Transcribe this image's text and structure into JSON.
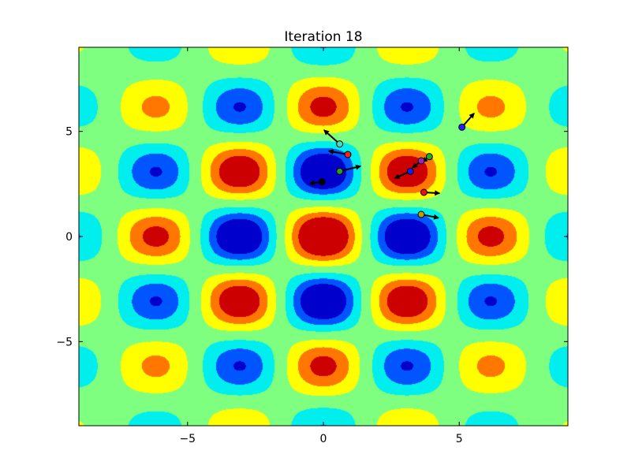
{
  "chart_data": {
    "type": "contour",
    "title": "Iteration 18",
    "xlabel": "",
    "ylabel": "",
    "xlim": [
      -9,
      9
    ],
    "ylim": [
      -9,
      9
    ],
    "grid": false,
    "x_ticks": [
      {
        "value": -5,
        "label": "−5"
      },
      {
        "value": 0,
        "label": "0"
      },
      {
        "value": 5,
        "label": "5"
      }
    ],
    "y_ticks": [
      {
        "value": -5,
        "label": "−5"
      },
      {
        "value": 0,
        "label": "0"
      },
      {
        "value": 5,
        "label": "5"
      }
    ],
    "contour": {
      "function": "cos(x)*cos(y)*exp(-(x^2+y^2)/100)",
      "colormap": "jet",
      "level_colors": [
        "#0000cd",
        "#0055ff",
        "#00eeee",
        "#7fff7f",
        "#ffff00",
        "#ff7700",
        "#cc0000"
      ],
      "level_thresholds": [
        -0.6,
        -0.4,
        -0.15,
        0.15,
        0.4,
        0.6
      ]
    },
    "particles": [
      {
        "x": 0.6,
        "y": 4.4,
        "color": "#40e0c0",
        "vx": -0.9,
        "vy": 0.8
      },
      {
        "x": 0.9,
        "y": 3.9,
        "color": "#ff2020",
        "vx": -1.1,
        "vy": 0.2
      },
      {
        "x": 0.6,
        "y": 3.1,
        "color": "#2a9d2a",
        "vx": 1.2,
        "vy": 0.3
      },
      {
        "x": -0.05,
        "y": 2.6,
        "color": "#000000",
        "vx": -0.7,
        "vy": -0.1
      },
      {
        "x": 3.9,
        "y": 3.8,
        "color": "#22aa22",
        "vx": -0.4,
        "vy": -0.3
      },
      {
        "x": 3.6,
        "y": 3.6,
        "color": "#9922cc",
        "vx": -0.5,
        "vy": -0.4
      },
      {
        "x": 3.2,
        "y": 3.1,
        "color": "#1a1aff",
        "vx": -0.9,
        "vy": -0.4
      },
      {
        "x": 3.7,
        "y": 2.1,
        "color": "#ee1111",
        "vx": 0.9,
        "vy": -0.05
      },
      {
        "x": 3.6,
        "y": 1.05,
        "color": "#b8a000",
        "vx": 1.0,
        "vy": -0.2
      },
      {
        "x": 5.1,
        "y": 5.2,
        "color": "#2020ff",
        "vx": 0.7,
        "vy": 0.8
      }
    ]
  }
}
